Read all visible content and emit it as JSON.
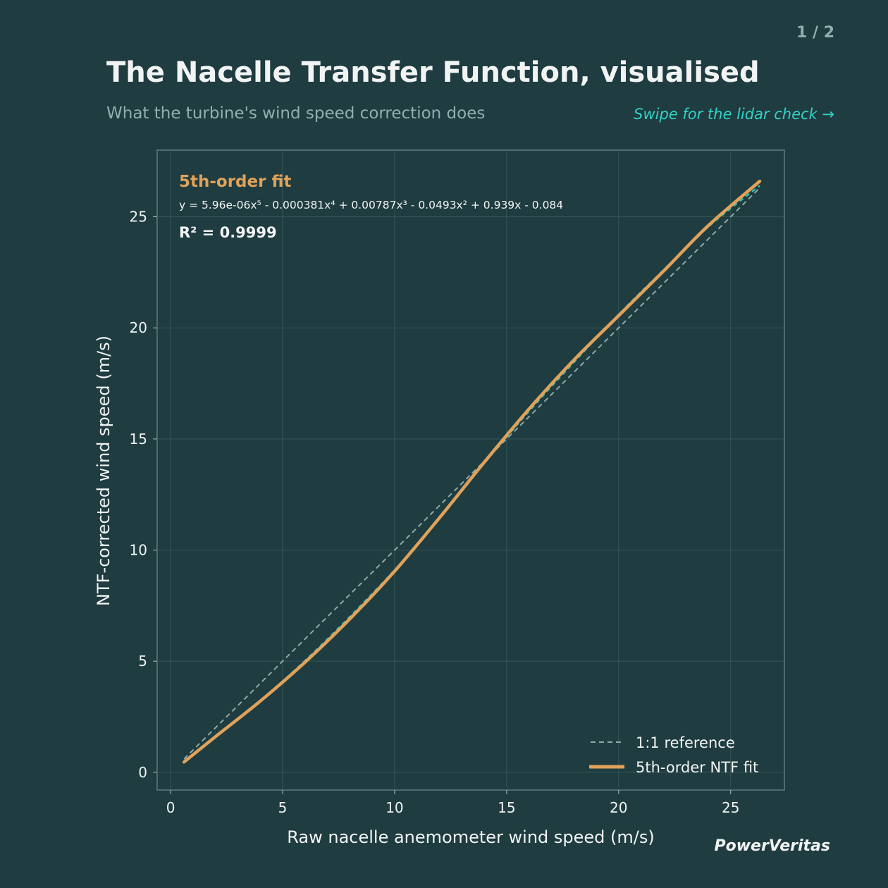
{
  "header": {
    "page_counter": "1 / 2",
    "title": "The Nacelle Transfer Function, visualised",
    "subtitle": "What the turbine's wind speed correction does",
    "swipe_hint": "Swipe for the lidar check  →"
  },
  "footer": {
    "brand": "PowerVeritas"
  },
  "annotation": {
    "fit_label": "5th-order fit",
    "equation": "y = 5.96e-06x⁵ - 0.000381x⁴ + 0.00787x³ - 0.0493x² + 0.939x - 0.084",
    "r_squared": "R² = 0.9999"
  },
  "colors": {
    "background": "#1f3c40",
    "fit": "#e0a25a",
    "reference": "#8fa8a8",
    "data": "#33bdb4",
    "text": "#f2f4f4",
    "muted": "#8fb0b0",
    "accent": "#33d1c6"
  },
  "chart_data": {
    "type": "line",
    "xlabel": "Raw nacelle anemometer wind speed (m/s)",
    "ylabel": "NTF-corrected wind speed (m/s)",
    "xlim": [
      -0.6,
      27.4
    ],
    "ylim": [
      -0.8,
      28
    ],
    "xticks": [
      0,
      5,
      10,
      15,
      20,
      25
    ],
    "yticks": [
      0,
      5,
      10,
      15,
      20,
      25
    ],
    "grid": true,
    "legend_position": "bottom-right",
    "legend": [
      "1:1 reference",
      "5th-order NTF fit"
    ],
    "series": [
      {
        "name": "1:1 reference",
        "style": "dashed",
        "x": [
          0.6,
          26.3
        ],
        "y": [
          0.6,
          26.3
        ]
      },
      {
        "name": "5th-order NTF fit",
        "style": "solid",
        "x": [
          0.6,
          2,
          4,
          6,
          8,
          10,
          12,
          14,
          16,
          18,
          20,
          22,
          24,
          26.3
        ],
        "y": [
          0.46,
          1.6,
          3.2,
          4.95,
          6.9,
          9.05,
          11.45,
          13.95,
          16.35,
          18.55,
          20.55,
          22.55,
          24.6,
          26.6
        ]
      },
      {
        "style": "dashed",
        "x": [
          0.6,
          2,
          4,
          6,
          8,
          10,
          12,
          14,
          16,
          18,
          20,
          22,
          24,
          26.3
        ],
        "y": [
          0.5,
          1.62,
          3.22,
          5.02,
          7.0,
          9.1,
          11.4,
          13.9,
          16.25,
          18.45,
          20.6,
          22.6,
          24.55,
          26.4
        ]
      }
    ]
  }
}
